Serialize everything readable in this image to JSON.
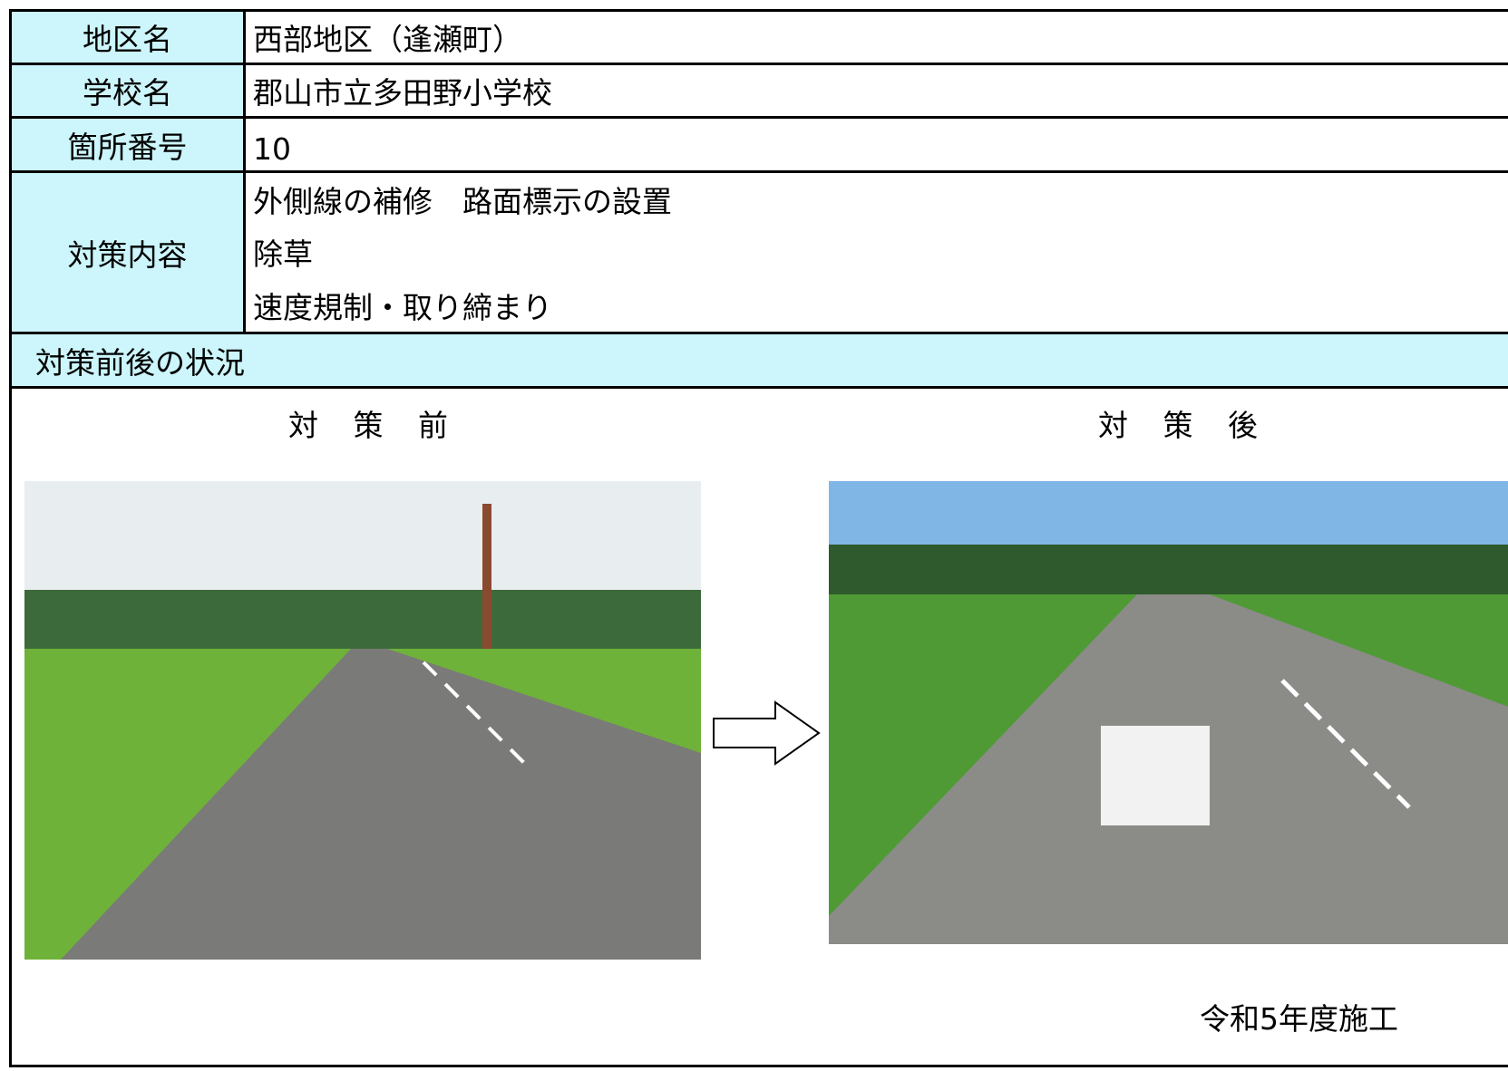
{
  "rows": [
    {
      "label": "地区名",
      "value": "西部地区（逢瀬町）"
    },
    {
      "label": "学校名",
      "value": "郡山市立多田野小学校"
    },
    {
      "label": "箇所番号",
      "value": "10"
    }
  ],
  "measures": {
    "label": "対策内容",
    "items": [
      "外側線の補修　路面標示の設置",
      "除草",
      "速度規制・取り締まり"
    ]
  },
  "section": {
    "title": "対策前後の状況",
    "before_caption": "対 策 前",
    "after_caption": "対 策 後",
    "note": "令和5年度施工"
  }
}
